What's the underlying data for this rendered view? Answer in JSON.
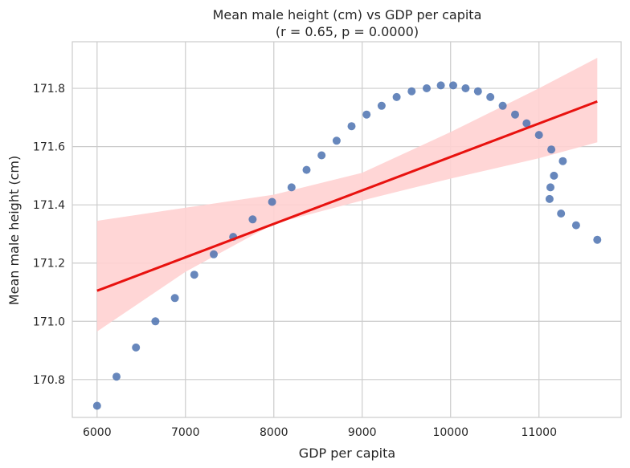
{
  "chart_data": {
    "type": "scatter",
    "title": "Mean male height (cm) vs GDP per capita",
    "subtitle": "(r = 0.65, p = 0.0000)",
    "xlabel": "GDP per capita",
    "ylabel": "Mean male height (cm)",
    "xlim": [
      5720,
      11930
    ],
    "ylim": [
      170.67,
      171.96
    ],
    "xticks": [
      6000,
      7000,
      8000,
      9000,
      10000,
      11000
    ],
    "yticks": [
      170.8,
      171.0,
      171.2,
      171.4,
      171.6,
      171.8
    ],
    "ytick_labels": [
      "170.8",
      "171.0",
      "171.2",
      "171.4",
      "171.6",
      "171.8"
    ],
    "grid": true,
    "colors": {
      "points": "#4c72b0",
      "regression_line": "#e8120f",
      "confidence_band": "#ffd1d1",
      "grid": "#cccccc",
      "frame": "#cccccc"
    },
    "points": {
      "x": [
        6000,
        6220,
        6440,
        6660,
        6880,
        7100,
        7320,
        7540,
        7760,
        7980,
        8200,
        8370,
        8540,
        8710,
        8880,
        9050,
        9220,
        9390,
        9560,
        9730,
        9890,
        10030,
        10170,
        10310,
        10450,
        10590,
        10730,
        10860,
        11000,
        11140,
        11170,
        11130,
        11120,
        11270,
        11250,
        11420,
        11660
      ],
      "y": [
        170.71,
        170.81,
        170.91,
        171.0,
        171.08,
        171.16,
        171.23,
        171.29,
        171.35,
        171.41,
        171.46,
        171.52,
        171.57,
        171.62,
        171.67,
        171.71,
        171.74,
        171.77,
        171.79,
        171.8,
        171.81,
        171.81,
        171.8,
        171.79,
        171.77,
        171.74,
        171.71,
        171.68,
        171.64,
        171.59,
        171.5,
        171.46,
        171.42,
        171.55,
        171.37,
        171.33,
        171.28
      ]
    },
    "regression": {
      "x": [
        6000,
        11660
      ],
      "y": [
        171.105,
        171.755
      ]
    },
    "confidence_band": {
      "x": [
        6000,
        7000,
        8000,
        9000,
        10000,
        11000,
        11660
      ],
      "upper": [
        171.345,
        171.39,
        171.435,
        171.51,
        171.65,
        171.8,
        171.905
      ],
      "lower": [
        170.965,
        171.17,
        171.335,
        171.415,
        171.49,
        171.56,
        171.615
      ]
    }
  }
}
